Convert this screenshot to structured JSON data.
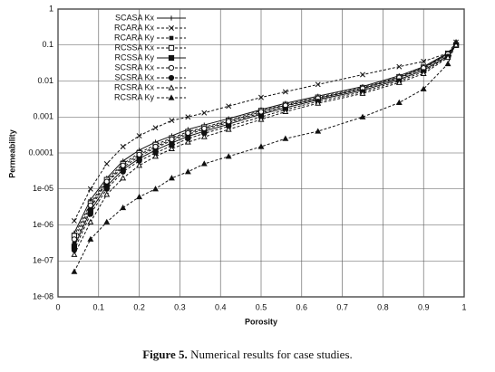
{
  "chart_data": {
    "type": "line",
    "log_y": true,
    "grid": true,
    "legend": "upper left",
    "xlabel": "Porosity",
    "ylabel": "Permeability",
    "caption_label": "Figure 5.",
    "caption": "Numerical results for case studies.",
    "xlim": [
      0,
      1
    ],
    "xticks": [
      0,
      0.1,
      0.2,
      0.3,
      0.4,
      0.5,
      0.6,
      0.7,
      0.8,
      0.9,
      1
    ],
    "ylim": [
      1e-08,
      1
    ],
    "yticks": [
      {
        "value": 1e-08,
        "label": "1e-08"
      },
      {
        "value": 1e-07,
        "label": "1e-07"
      },
      {
        "value": 1e-06,
        "label": "1e-06"
      },
      {
        "value": 1e-05,
        "label": "1e-05"
      },
      0.0001,
      0.001,
      0.01,
      0.1,
      1
    ],
    "x": [
      0.04,
      0.08,
      0.12,
      0.16,
      0.2,
      0.24,
      0.28,
      0.32,
      0.36,
      0.42,
      0.5,
      0.56,
      0.64,
      0.75,
      0.84,
      0.9,
      0.96,
      0.98
    ],
    "series": [
      {
        "name": "SCASA Kx",
        "color": "#111111",
        "marker": "plus",
        "dash": false,
        "values": [
          6e-07,
          5e-06,
          2e-05,
          6e-05,
          0.00012,
          0.0002,
          0.0003,
          0.00045,
          0.0006,
          0.0009,
          0.0016,
          0.0024,
          0.0038,
          0.007,
          0.014,
          0.025,
          0.06,
          0.1
        ]
      },
      {
        "name": "RCARA Kx",
        "color": "#111111",
        "marker": "cross",
        "dash": true,
        "values": [
          1.3e-06,
          1e-05,
          5e-05,
          0.00015,
          0.0003,
          0.0005,
          0.0008,
          0.001,
          0.0013,
          0.002,
          0.0035,
          0.005,
          0.008,
          0.015,
          0.025,
          0.035,
          0.06,
          0.12
        ]
      },
      {
        "name": "RCARA Ky",
        "color": "#111111",
        "marker": "square-small",
        "dash": true,
        "values": [
          3e-07,
          3e-06,
          1.5e-05,
          4e-05,
          8e-05,
          0.00014,
          0.00022,
          0.00033,
          0.00045,
          0.0007,
          0.0013,
          0.002,
          0.0032,
          0.006,
          0.012,
          0.022,
          0.055,
          0.1
        ]
      },
      {
        "name": "RCSSA Kx",
        "color": "#111111",
        "marker": "square",
        "dash": true,
        "values": [
          5e-07,
          4e-06,
          1.8e-05,
          5e-05,
          0.0001,
          0.00017,
          0.00026,
          0.00039,
          0.00052,
          0.0008,
          0.0015,
          0.0022,
          0.0035,
          0.0065,
          0.013,
          0.024,
          0.058,
          0.1
        ]
      },
      {
        "name": "RCSSA Ky",
        "color": "#111111",
        "marker": "square-filled",
        "dash": false,
        "values": [
          2.5e-07,
          2.5e-06,
          1.2e-05,
          3.5e-05,
          7e-05,
          0.00012,
          0.00019,
          0.00029,
          0.0004,
          0.00063,
          0.0012,
          0.0018,
          0.003,
          0.0055,
          0.011,
          0.02,
          0.05,
          0.1
        ]
      },
      {
        "name": "SCSRA Kx",
        "color": "#111111",
        "marker": "circle",
        "dash": true,
        "values": [
          4e-07,
          3.5e-06,
          1.6e-05,
          4.5e-05,
          9e-05,
          0.00015,
          0.00024,
          0.00036,
          0.00048,
          0.00075,
          0.0014,
          0.0021,
          0.0033,
          0.0062,
          0.0125,
          0.023,
          0.056,
          0.1
        ]
      },
      {
        "name": "SCSRA Kx",
        "color": "#111111",
        "marker": "circle-filled",
        "dash": true,
        "values": [
          2e-07,
          2e-06,
          1e-05,
          3e-05,
          6e-05,
          0.0001,
          0.00016,
          0.00025,
          0.00035,
          0.00055,
          0.001,
          0.0016,
          0.0027,
          0.005,
          0.01,
          0.018,
          0.048,
          0.1
        ]
      },
      {
        "name": "RCSRA Kx",
        "color": "#111111",
        "marker": "triangle",
        "dash": true,
        "values": [
          1.5e-07,
          1.2e-06,
          7e-06,
          2e-05,
          4.5e-05,
          8e-05,
          0.00013,
          0.0002,
          0.00028,
          0.00045,
          0.00085,
          0.0014,
          0.0024,
          0.0045,
          0.009,
          0.016,
          0.045,
          0.1
        ]
      },
      {
        "name": "RCSRA Ky",
        "color": "#111111",
        "marker": "triangle-filled",
        "dash": true,
        "values": [
          5e-08,
          4e-07,
          1.2e-06,
          3e-06,
          6e-06,
          1e-05,
          2e-05,
          3e-05,
          5e-05,
          8e-05,
          0.00015,
          0.00025,
          0.0004,
          0.001,
          0.0025,
          0.006,
          0.03,
          0.12
        ]
      }
    ]
  }
}
